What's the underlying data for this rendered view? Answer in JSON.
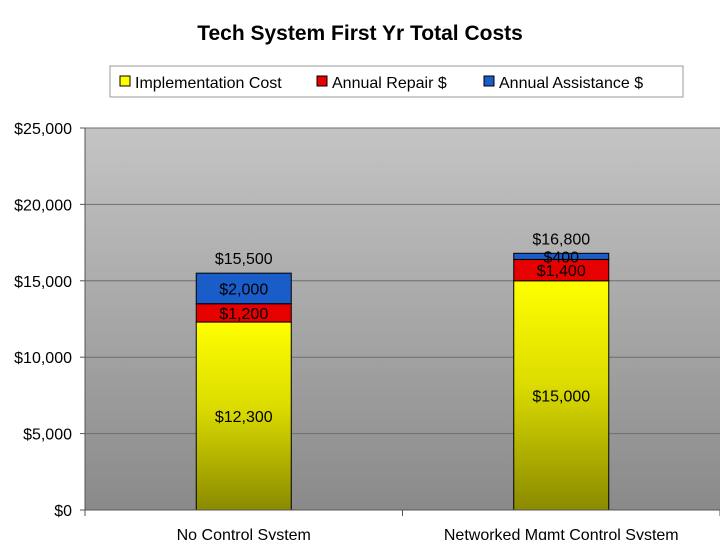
{
  "chart_data": {
    "type": "bar",
    "stacked": true,
    "title": "Tech System First Yr Total Costs",
    "categories": [
      "No Control System",
      "Networked Mgmt Control System"
    ],
    "series": [
      {
        "name": "Implementation Cost",
        "values": [
          12300,
          15000
        ],
        "labels": [
          "$12,300",
          "$15,000"
        ],
        "color": "#ffff00"
      },
      {
        "name": "Annual Repair $",
        "values": [
          1200,
          1400
        ],
        "labels": [
          "$1,200",
          "$1,400"
        ],
        "color": "#e60000"
      },
      {
        "name": "Annual Assistance $",
        "values": [
          2000,
          400
        ],
        "labels": [
          "$2,000",
          "$400"
        ],
        "color": "#1a5cc8"
      }
    ],
    "totals": [
      "$15,500",
      "$16,800"
    ],
    "ylim": [
      0,
      25000
    ],
    "yticks": [
      0,
      5000,
      10000,
      15000,
      20000,
      25000
    ],
    "ytick_labels": [
      "$0",
      "$5,000",
      "$10,000",
      "$15,000",
      "$20,000",
      "$25,000"
    ],
    "grid": true,
    "legend": "top"
  }
}
